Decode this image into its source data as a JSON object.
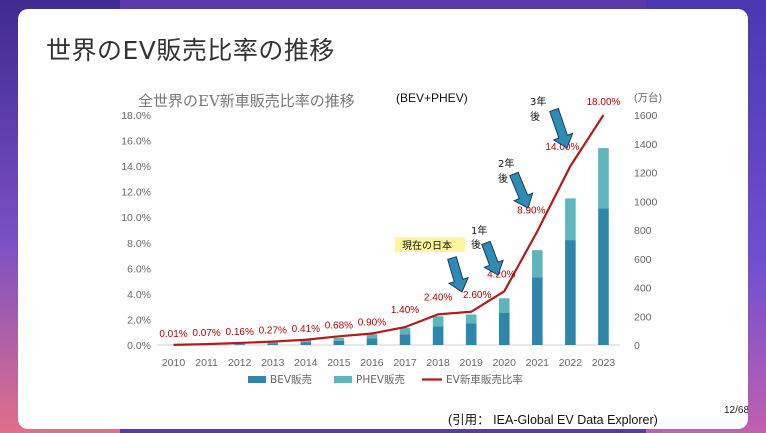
{
  "slide": {
    "title": "世界のEV販売比率の推移",
    "source": "(引用： IEA-Global EV Data Explorer)",
    "page_number": "12/68"
  },
  "chart_data": {
    "type": "bar",
    "title": "全世界のEV新車販売比率の推移",
    "subtitle": "(BEV+PHEV)",
    "categories": [
      "2010",
      "2011",
      "2012",
      "2013",
      "2014",
      "2015",
      "2016",
      "2017",
      "2018",
      "2019",
      "2020",
      "2021",
      "2022",
      "2023"
    ],
    "series": [
      {
        "name": "BEV販売",
        "kind": "bar",
        "axis": "right",
        "color": "#2e86ab",
        "values": [
          0.7,
          4,
          6,
          12,
          20,
          30,
          45,
          75,
          130,
          150,
          225,
          470,
          730,
          950
        ]
      },
      {
        "name": "PHEV販売",
        "kind": "bar",
        "axis": "right",
        "color": "#5fb5bd",
        "values": [
          0.3,
          1,
          3,
          6,
          12,
          20,
          30,
          45,
          70,
          62,
          100,
          190,
          290,
          420
        ]
      },
      {
        "name": "EV新車販売比率",
        "kind": "line",
        "axis": "left",
        "color": "#b31b1b",
        "values": [
          0.01,
          0.07,
          0.16,
          0.27,
          0.41,
          0.68,
          0.9,
          1.4,
          2.4,
          2.6,
          4.2,
          8.9,
          14.0,
          18.0
        ]
      }
    ],
    "line_labels": [
      "0.01%",
      "0.07%",
      "0.16%",
      "0.27%",
      "0.41%",
      "0.68%",
      "0.90%",
      "1.40%",
      "2.40%",
      "2.60%",
      "4.20%",
      "8.90%",
      "14.00%",
      "18.00%"
    ],
    "y_left": {
      "min": 0,
      "max": 18,
      "ticks": [
        "0.0%",
        "2.0%",
        "4.0%",
        "6.0%",
        "8.0%",
        "10.0%",
        "12.0%",
        "14.0%",
        "16.0%",
        "18.0%"
      ]
    },
    "y_right": {
      "min": 0,
      "max": 1600,
      "unit": "(万台)",
      "ticks": [
        "0",
        "200",
        "400",
        "600",
        "800",
        "1000",
        "1200",
        "1400",
        "1600"
      ]
    },
    "annotations": [
      {
        "text": "現在の日本",
        "target_year": "2019"
      },
      {
        "text_lines": [
          "1年",
          "後"
        ],
        "target_year": "2020"
      },
      {
        "text_lines": [
          "2年",
          "後"
        ],
        "target_year": "2021"
      },
      {
        "text_lines": [
          "3年",
          "後"
        ],
        "target_year": "2022"
      }
    ],
    "legend_position": "bottom",
    "grid": false
  }
}
